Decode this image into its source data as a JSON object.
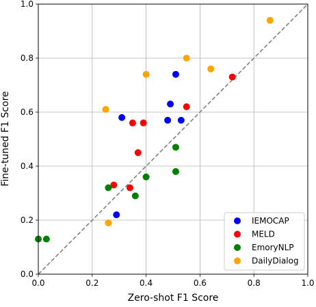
{
  "chart_data": {
    "type": "scatter",
    "title": "",
    "xlabel": "Zero-shot F1 Score",
    "ylabel": "Fine-tuned F1 Score",
    "xlim": [
      0.0,
      1.0
    ],
    "ylim": [
      0.0,
      1.0
    ],
    "xticks": [
      "0.0",
      "0.2",
      "0.4",
      "0.6",
      "0.8",
      "1.0"
    ],
    "yticks": [
      "0.0",
      "0.2",
      "0.4",
      "0.6",
      "0.8",
      "1.0"
    ],
    "grid": true,
    "legend_position": "bottom-right",
    "reference_line": {
      "style": "dashed",
      "color": "#808080",
      "from": [
        0,
        0
      ],
      "to": [
        1,
        1
      ]
    },
    "series": [
      {
        "name": "IEMOCAP",
        "color": "#0000ff",
        "points": [
          [
            0.31,
            0.58
          ],
          [
            0.49,
            0.63
          ],
          [
            0.51,
            0.74
          ],
          [
            0.48,
            0.57
          ],
          [
            0.53,
            0.57
          ],
          [
            0.29,
            0.22
          ]
        ]
      },
      {
        "name": "MELD",
        "color": "#ff0000",
        "points": [
          [
            0.35,
            0.56
          ],
          [
            0.39,
            0.56
          ],
          [
            0.55,
            0.62
          ],
          [
            0.72,
            0.73
          ],
          [
            0.37,
            0.45
          ],
          [
            0.28,
            0.33
          ],
          [
            0.34,
            0.32
          ]
        ]
      },
      {
        "name": "EmoryNLP",
        "color": "#008000",
        "points": [
          [
            0.0,
            0.13
          ],
          [
            0.03,
            0.13
          ],
          [
            0.26,
            0.32
          ],
          [
            0.36,
            0.29
          ],
          [
            0.4,
            0.36
          ],
          [
            0.51,
            0.38
          ],
          [
            0.51,
            0.47
          ]
        ]
      },
      {
        "name": "DailyDialog",
        "color": "#ffa500",
        "points": [
          [
            0.25,
            0.61
          ],
          [
            0.4,
            0.74
          ],
          [
            0.55,
            0.8
          ],
          [
            0.64,
            0.76
          ],
          [
            0.86,
            0.94
          ],
          [
            0.26,
            0.19
          ]
        ]
      }
    ]
  }
}
